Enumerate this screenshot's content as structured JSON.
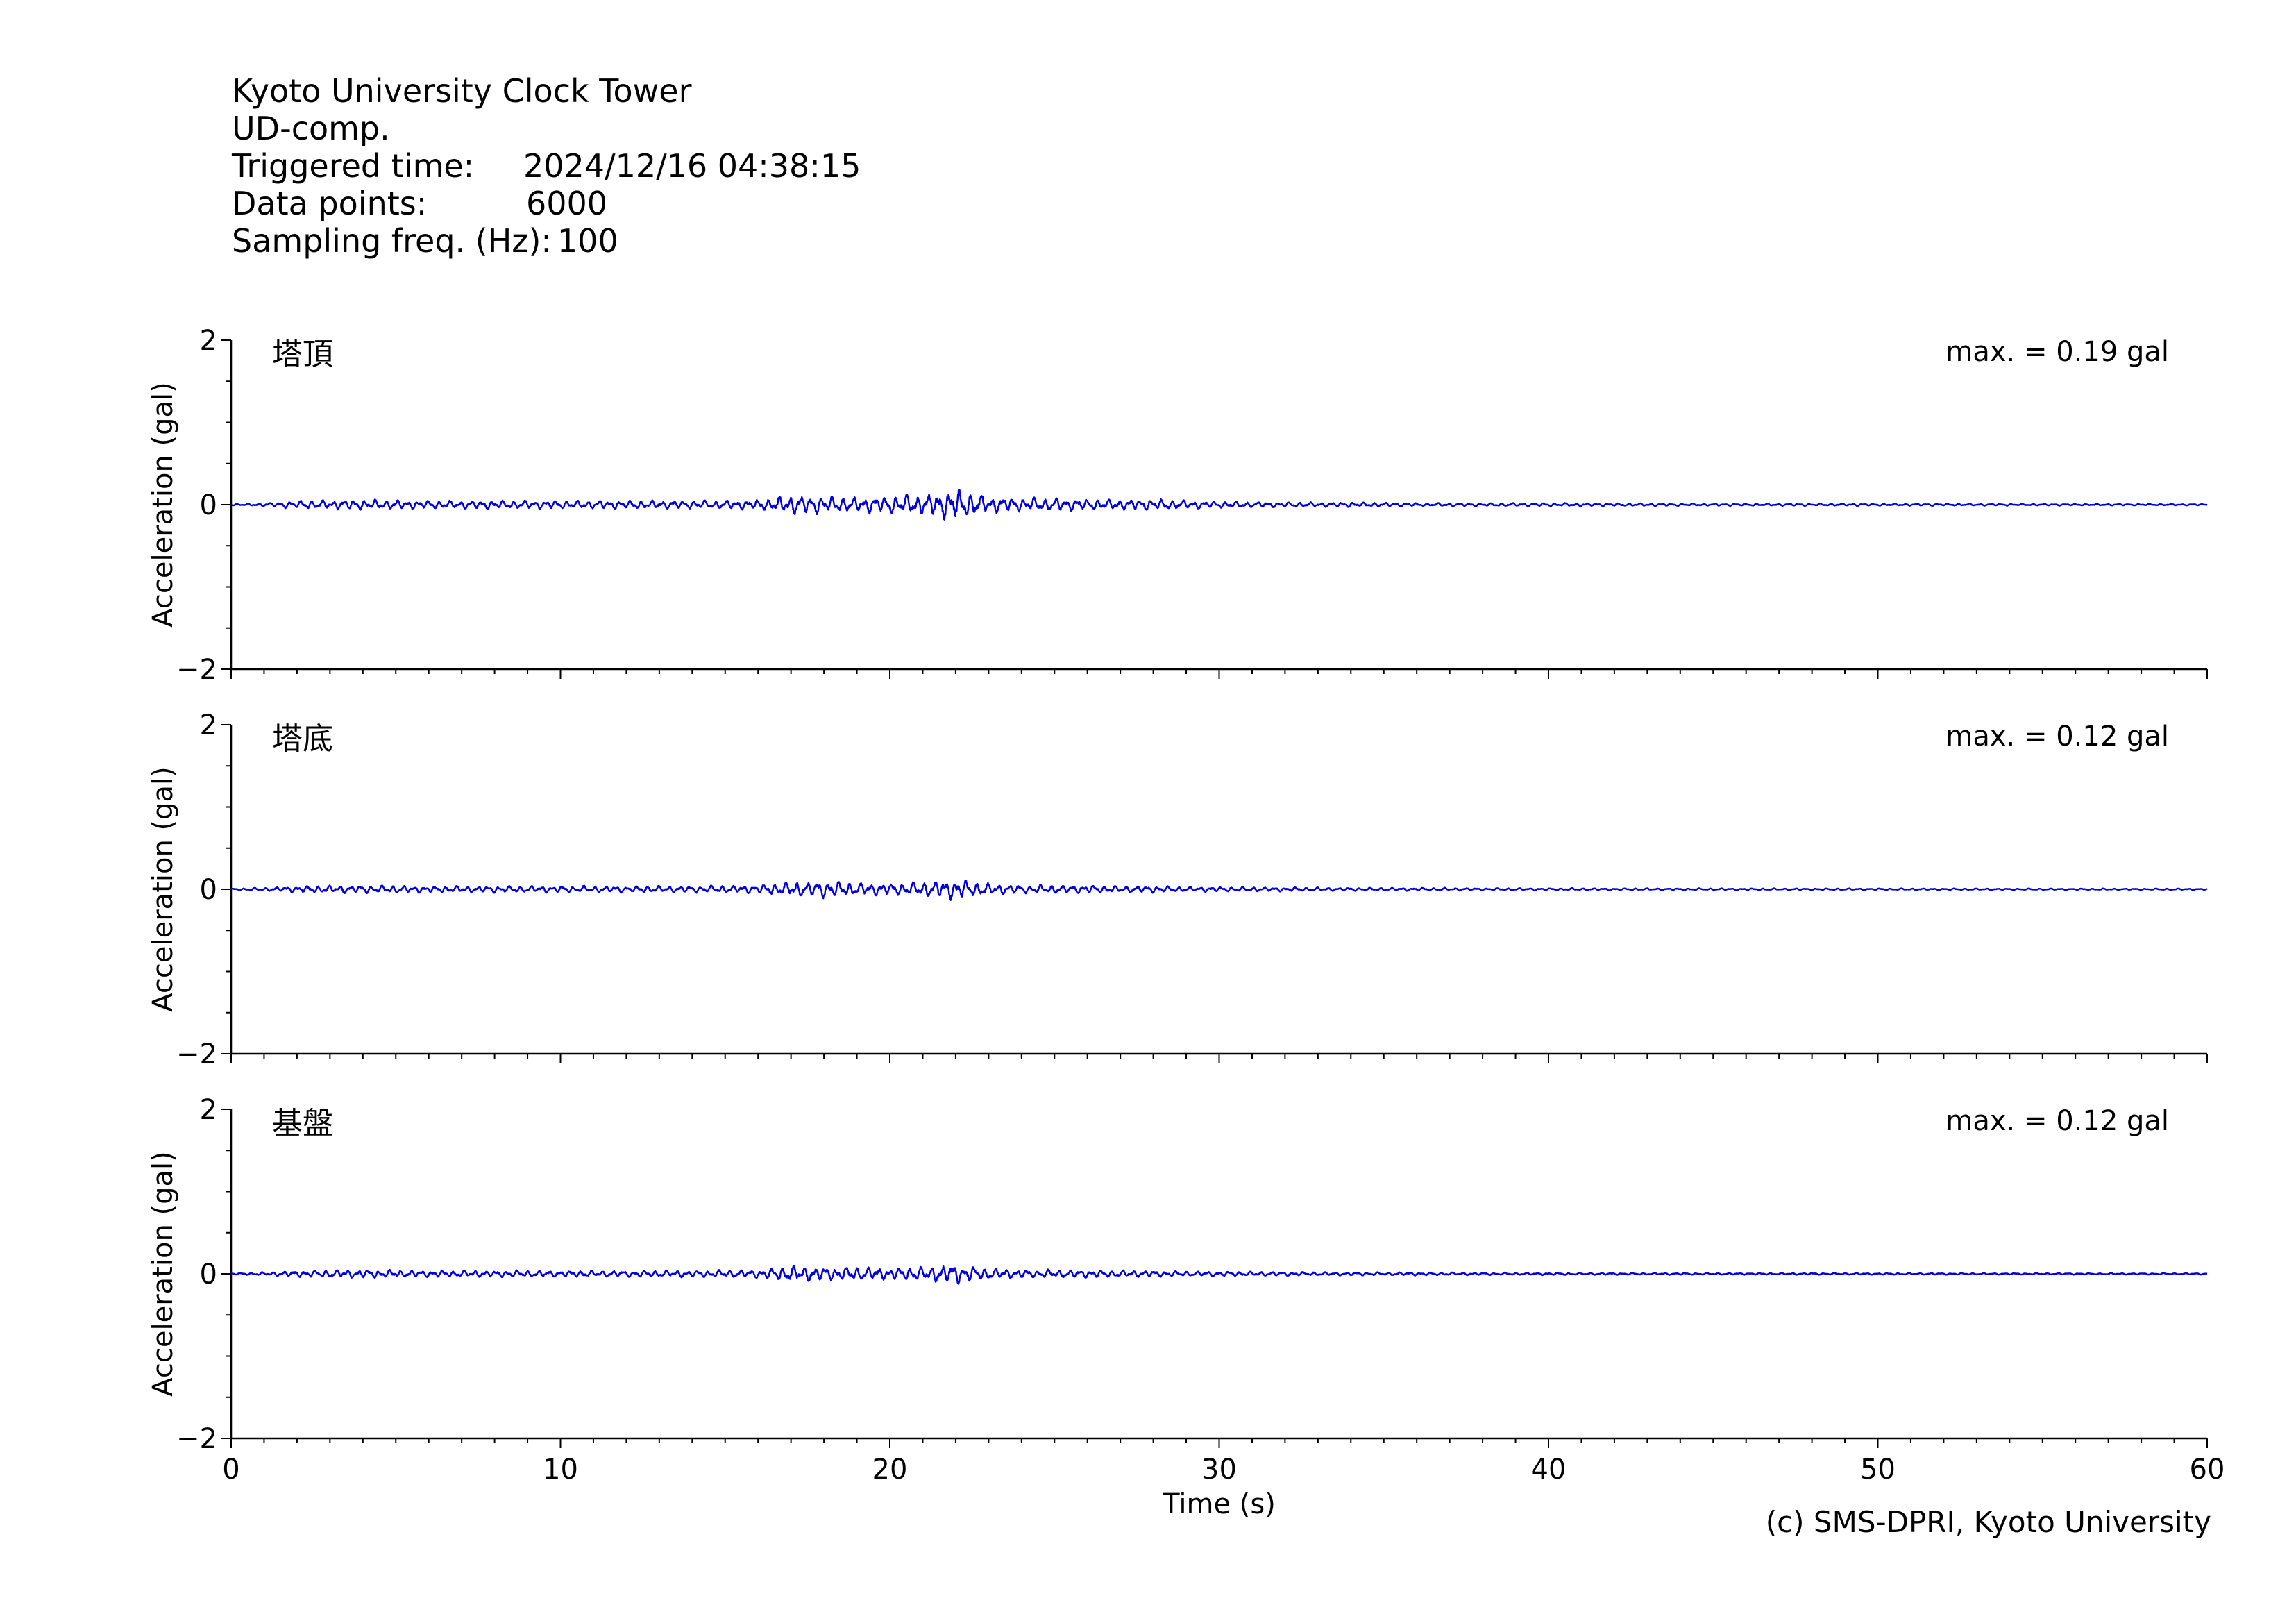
{
  "header": {
    "station": "Kyoto University Clock Tower",
    "component": "UD-comp.",
    "triggered_label": "Triggered time:",
    "triggered_value": "2024/12/16 04:38:15",
    "points_label": "Data points:",
    "points_value": "6000",
    "freq_label": "Sampling freq. (Hz):",
    "freq_value": "100"
  },
  "copyright": "(c) SMS-DPRI, Kyoto University",
  "colors": {
    "trace": "#0000dd",
    "axis": "#000000"
  },
  "chart_data": [
    {
      "type": "line",
      "panel_label": "塔頂",
      "max_label": "max. = 0.19 gal",
      "ylabel": "Acceleration (gal)",
      "xlabel": "",
      "xlim": [
        0,
        60
      ],
      "ylim": [
        -2,
        2
      ],
      "yticks": [
        "2",
        "0",
        "−2"
      ],
      "xticks": [],
      "grid": false,
      "series": [
        {
          "color": "#0000dd",
          "envelope": {
            "t": [
              0,
              1,
              2,
              4,
              6,
              8,
              10,
              12,
              14,
              16,
              17,
              18,
              19,
              20,
              21,
              22,
              23,
              24,
              25,
              26,
              27,
              28,
              29,
              30,
              32,
              34,
              36,
              38,
              40,
              45,
              50,
              55,
              60
            ],
            "amp": [
              0.01,
              0.02,
              0.05,
              0.06,
              0.05,
              0.05,
              0.05,
              0.05,
              0.05,
              0.06,
              0.12,
              0.1,
              0.09,
              0.11,
              0.12,
              0.19,
              0.1,
              0.08,
              0.08,
              0.07,
              0.06,
              0.07,
              0.05,
              0.04,
              0.03,
              0.03,
              0.02,
              0.02,
              0.02,
              0.015,
              0.015,
              0.012,
              0.01
            ]
          }
        }
      ]
    },
    {
      "type": "line",
      "panel_label": "塔底",
      "max_label": "max. = 0.12 gal",
      "ylabel": "Acceleration (gal)",
      "xlabel": "",
      "xlim": [
        0,
        60
      ],
      "ylim": [
        -2,
        2
      ],
      "yticks": [
        "2",
        "0",
        "−2"
      ],
      "xticks": [],
      "grid": false,
      "series": [
        {
          "color": "#0000dd",
          "envelope": {
            "t": [
              0,
              1,
              2,
              4,
              6,
              8,
              10,
              12,
              14,
              16,
              17,
              18,
              19,
              20,
              21,
              22,
              23,
              24,
              25,
              26,
              27,
              28,
              29,
              30,
              32,
              34,
              36,
              38,
              40,
              45,
              50,
              55,
              60
            ],
            "amp": [
              0.01,
              0.02,
              0.04,
              0.05,
              0.04,
              0.04,
              0.04,
              0.04,
              0.04,
              0.05,
              0.09,
              0.1,
              0.08,
              0.07,
              0.09,
              0.12,
              0.07,
              0.05,
              0.05,
              0.05,
              0.04,
              0.04,
              0.03,
              0.03,
              0.025,
              0.02,
              0.02,
              0.015,
              0.015,
              0.012,
              0.012,
              0.01,
              0.01
            ]
          }
        }
      ]
    },
    {
      "type": "line",
      "panel_label": "基盤",
      "max_label": "max. = 0.12 gal",
      "ylabel": "Acceleration (gal)",
      "xlabel": "Time (s)",
      "xlim": [
        0,
        60
      ],
      "ylim": [
        -2,
        2
      ],
      "yticks": [
        "2",
        "0",
        "−2"
      ],
      "xticks": [
        "0",
        "10",
        "20",
        "30",
        "40",
        "50",
        "60"
      ],
      "grid": false,
      "series": [
        {
          "color": "#0000dd",
          "envelope": {
            "t": [
              0,
              1,
              2,
              4,
              6,
              8,
              10,
              12,
              14,
              16,
              17,
              18,
              19,
              20,
              21,
              22,
              23,
              24,
              25,
              26,
              27,
              28,
              29,
              30,
              32,
              34,
              36,
              38,
              40,
              45,
              50,
              55,
              60
            ],
            "amp": [
              0.01,
              0.02,
              0.04,
              0.05,
              0.04,
              0.04,
              0.04,
              0.04,
              0.04,
              0.05,
              0.1,
              0.09,
              0.08,
              0.07,
              0.09,
              0.12,
              0.07,
              0.05,
              0.05,
              0.05,
              0.04,
              0.04,
              0.03,
              0.03,
              0.025,
              0.02,
              0.02,
              0.015,
              0.015,
              0.012,
              0.012,
              0.01,
              0.01
            ]
          }
        }
      ]
    }
  ]
}
